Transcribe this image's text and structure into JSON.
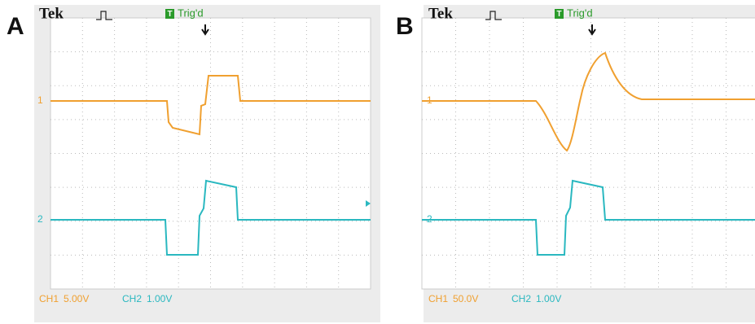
{
  "panels": [
    {
      "label": "A",
      "brand": "Tek",
      "trigger_icon": "T",
      "trigger": "Trig'd",
      "ch1_marker": "1",
      "ch2_marker": "2",
      "ch1_label": "CH1",
      "ch1_scale": "5.00V",
      "ch2_label": "CH2",
      "ch2_scale": "1.00V"
    },
    {
      "label": "B",
      "brand": "Tek",
      "trigger_icon": "T",
      "trigger": "Trig'd",
      "ch1_marker": "1",
      "ch2_marker": "2",
      "ch1_label": "CH1",
      "ch1_scale": "50.0V",
      "ch2_label": "CH2",
      "ch2_scale": "1.00V"
    }
  ]
}
